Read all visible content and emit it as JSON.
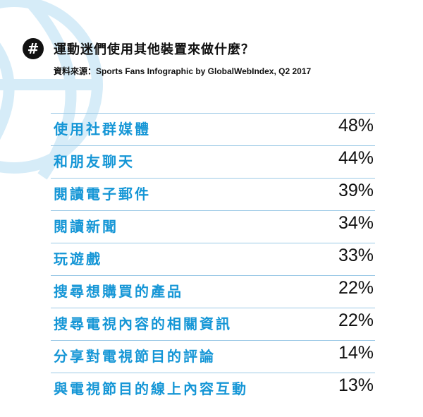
{
  "header": {
    "hash_symbol": "#",
    "title": "運動迷們使用其他裝置來做什麼？",
    "source": "資料來源：Sports Fans Infographic by GlobalWebIndex, Q2 2017"
  },
  "colors": {
    "label": "#1596d6",
    "divider": "#9bc9e6",
    "ball": "#d6ecf8",
    "text": "#111111"
  },
  "chart_data": {
    "type": "table",
    "title": "運動迷們使用其他裝置來做什麼？",
    "rows": [
      {
        "label": "使用社群媒體",
        "value": "48%"
      },
      {
        "label": "和朋友聊天",
        "value": "44%"
      },
      {
        "label": "閱讀電子郵件",
        "value": "39%"
      },
      {
        "label": "閱讀新聞",
        "value": "34%"
      },
      {
        "label": "玩遊戲",
        "value": "33%"
      },
      {
        "label": "搜尋想購買的產品",
        "value": "22%"
      },
      {
        "label": "搜尋電視內容的相關資訊",
        "value": "22%"
      },
      {
        "label": "分享對電視節目的評論",
        "value": "14%"
      },
      {
        "label": "與電視節目的線上內容互動",
        "value": "13%"
      }
    ]
  }
}
